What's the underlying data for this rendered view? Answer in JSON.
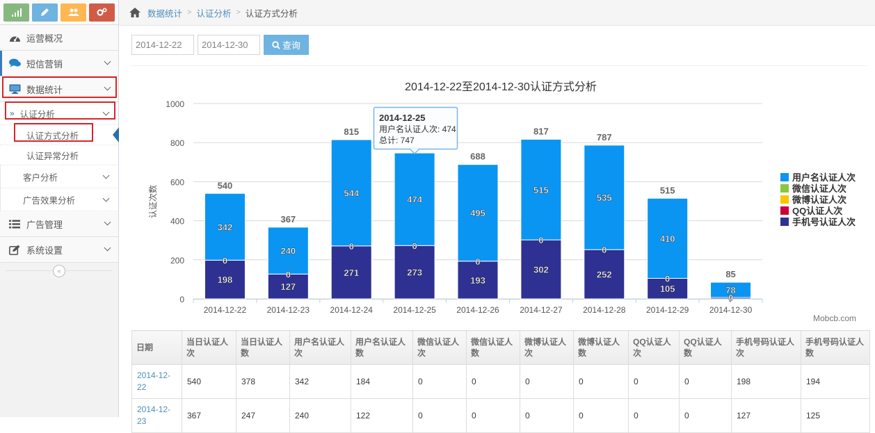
{
  "sidebar": {
    "shortcuts": [
      {
        "icon": "signal-icon",
        "color": "#87b87f"
      },
      {
        "icon": "pencil-icon",
        "color": "#6fb3e0"
      },
      {
        "icon": "users-icon",
        "color": "#ffb752"
      },
      {
        "icon": "cogs-icon",
        "color": "#d15b47"
      }
    ],
    "items": [
      {
        "label": "运营概况",
        "icon": "dashboard-icon"
      },
      {
        "label": "短信营销",
        "icon": "comments-icon"
      },
      {
        "label": "数据统计",
        "icon": "desktop-icon"
      },
      {
        "label": "认证分析"
      },
      {
        "label": "认证方式分析"
      },
      {
        "label": "认证异常分析"
      },
      {
        "label": "客户分析"
      },
      {
        "label": "广告效果分析"
      },
      {
        "label": "广告管理",
        "icon": "list-icon"
      },
      {
        "label": "系统设置",
        "icon": "edit-icon"
      }
    ],
    "collapse_glyph": "«"
  },
  "breadcrumb": {
    "items": [
      "数据统计",
      "认证分析",
      "认证方式分析"
    ]
  },
  "filter": {
    "start_date": "2014-12-22",
    "end_date": "2014-12-30",
    "query_label": "查询"
  },
  "chart_data": {
    "type": "bar",
    "stacked": true,
    "title": "2014-12-22至2014-12-30认证方式分析",
    "ylabel": "认证次数",
    "ylim": [
      0,
      1000
    ],
    "yticks": [
      0,
      200,
      400,
      600,
      800,
      1000
    ],
    "categories": [
      "2014-12-22",
      "2014-12-23",
      "2014-12-24",
      "2014-12-25",
      "2014-12-26",
      "2014-12-27",
      "2014-12-28",
      "2014-12-29",
      "2014-12-30"
    ],
    "series": [
      {
        "name": "用户名认证人次",
        "color": "#0a95f2",
        "values": [
          342,
          240,
          544,
          474,
          495,
          515,
          535,
          410,
          78
        ]
      },
      {
        "name": "微信认证人次",
        "color": "#8bc63f",
        "values": [
          0,
          0,
          0,
          0,
          0,
          0,
          0,
          0,
          0
        ]
      },
      {
        "name": "微博认证人次",
        "color": "#f9c600",
        "values": [
          0,
          0,
          0,
          0,
          0,
          0,
          0,
          0,
          0
        ]
      },
      {
        "name": "QQ认证人次",
        "color": "#c9003a",
        "values": [
          0,
          0,
          0,
          0,
          0,
          0,
          0,
          0,
          0
        ]
      },
      {
        "name": "手机号认证人次",
        "color": "#2e3192",
        "values": [
          198,
          127,
          271,
          273,
          193,
          302,
          252,
          105,
          7
        ]
      }
    ],
    "totals": [
      540,
      367,
      815,
      747,
      688,
      817,
      787,
      515,
      85
    ],
    "tooltip": {
      "date": "2014-12-25",
      "line1": "用户名认证人次: 474",
      "line2": "总计: 747"
    },
    "credit": "Mobcb.com",
    "legend_position": "right",
    "grid": true
  },
  "table": {
    "headers": [
      "日期",
      "当日认证人次",
      "当日认证人数",
      "用户名认证人次",
      "用户名认证人数",
      "微信认证人次",
      "微信认证人数",
      "微博认证人次",
      "微博认证人数",
      "QQ认证人次",
      "QQ认证人数",
      "手机号码认证人次",
      "手机号码认证人数"
    ],
    "rows": [
      [
        "2014-12-22",
        "540",
        "378",
        "342",
        "184",
        "0",
        "0",
        "0",
        "0",
        "0",
        "0",
        "198",
        "194"
      ],
      [
        "2014-12-23",
        "367",
        "247",
        "240",
        "122",
        "0",
        "0",
        "0",
        "0",
        "0",
        "0",
        "127",
        "125"
      ]
    ]
  }
}
